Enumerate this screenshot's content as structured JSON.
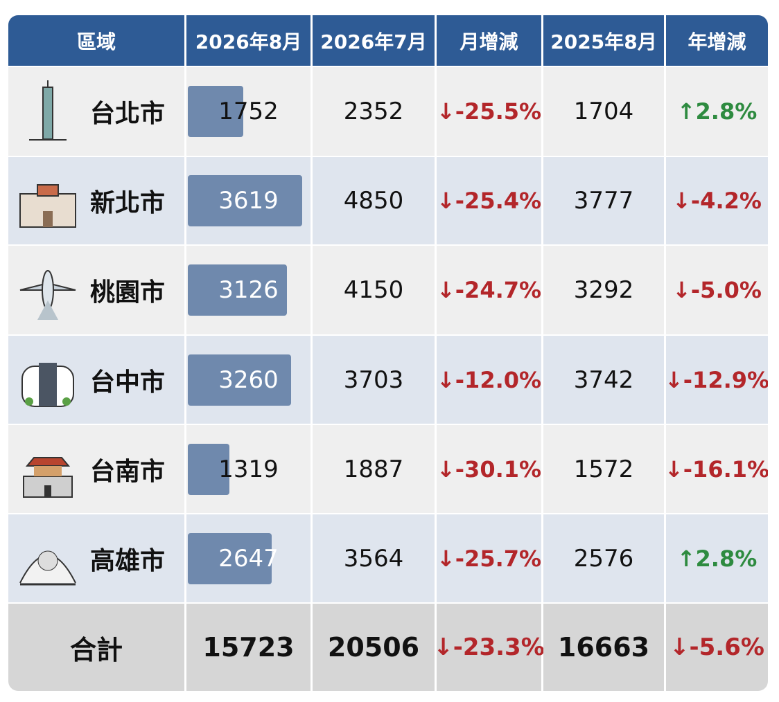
{
  "table": {
    "header": [
      "區域",
      "2026年8月",
      "2026年7月",
      "月增減",
      "2025年8月",
      "年增減"
    ],
    "rows": [
      [
        "台北市",
        1752,
        2352,
        "↓-25.5%",
        1704,
        "↑2.8%"
      ],
      [
        "新北市",
        3619,
        4850,
        "↓-25.4%",
        3777,
        "↓-4.2%"
      ],
      [
        "桃園市",
        3126,
        4150,
        "↓-24.7%",
        3292,
        "↓-5.0%"
      ],
      [
        "台中市",
        3260,
        3703,
        "↓-12.0%",
        3742,
        "↓-12.9%"
      ],
      [
        "台南市",
        1319,
        1887,
        "↓-30.1%",
        1572,
        "↓-16.1%"
      ],
      [
        "高雄市",
        2647,
        3564,
        "↓-25.7%",
        2576,
        "↑2.8%"
      ]
    ],
    "total": [
      "合計",
      15723,
      20506,
      "↓-23.3%",
      16663,
      "↓-5.6%"
    ],
    "bar_color": "#6f89ad",
    "up_color": "#2e8b40",
    "down_color": "#b3262a"
  }
}
